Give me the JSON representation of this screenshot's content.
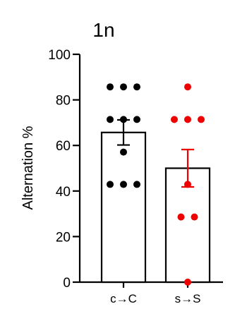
{
  "chart_data": {
    "type": "bar",
    "title": "1n",
    "xlabel": "",
    "ylabel": "Alternation %",
    "ylim": [
      0,
      100
    ],
    "yticks": [
      0,
      20,
      40,
      60,
      80,
      100
    ],
    "categories": [
      "c→C",
      "s→S"
    ],
    "series": [
      {
        "category": "c→C",
        "color": "#000000",
        "mean": 65.7,
        "sem": 5.5,
        "points": [
          85.7,
          85.7,
          85.7,
          71.4,
          71.4,
          71.4,
          57.1,
          42.9,
          42.9,
          42.9
        ]
      },
      {
        "category": "s→S",
        "color": "#ee0000",
        "mean": 50.0,
        "sem": 8.2,
        "points": [
          85.7,
          71.4,
          71.4,
          71.4,
          42.9,
          28.6,
          28.6,
          0
        ]
      }
    ],
    "grid": false,
    "legend": "none"
  }
}
